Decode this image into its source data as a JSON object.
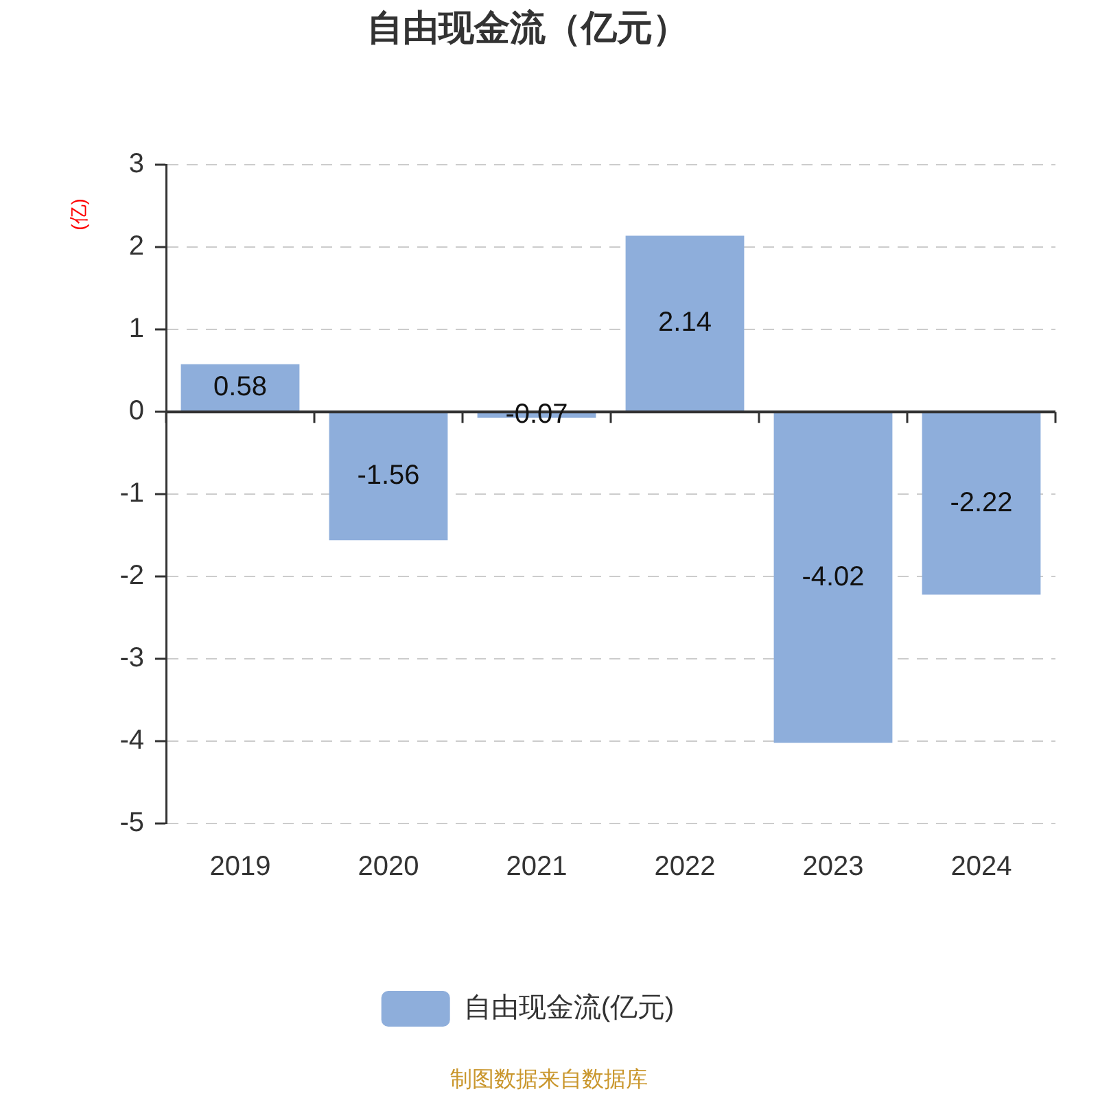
{
  "chart_data": {
    "type": "bar",
    "title": "自由现金流（亿元）",
    "ylabel": "(亿)",
    "categories": [
      "2019",
      "2020",
      "2021",
      "2022",
      "2023",
      "2024"
    ],
    "series": [
      {
        "name": "自由现金流(亿元)",
        "color": "#8eaedb",
        "values": [
          0.58,
          -1.56,
          -0.07,
          2.14,
          -4.02,
          -2.22
        ]
      }
    ],
    "ylim": [
      -5,
      3
    ],
    "yticks": [
      -5,
      -4,
      -3,
      -2,
      -1,
      0,
      1,
      2,
      3
    ],
    "grid": "y",
    "legend": "bottom",
    "data_labels": true,
    "annotations": [
      "制图数据来自数据库"
    ]
  }
}
